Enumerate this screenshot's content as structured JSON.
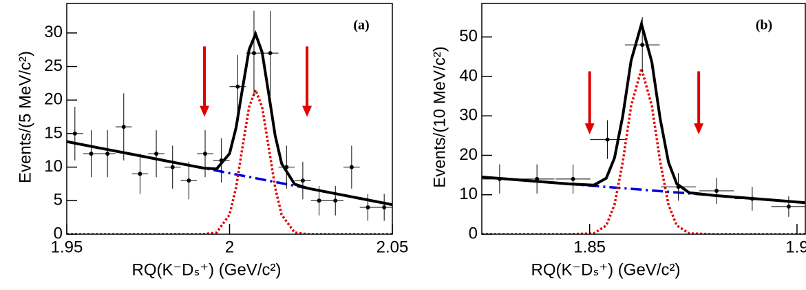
{
  "chart_data": [
    {
      "type": "scatter",
      "label": "(a)",
      "x_label": "RQ(K⁻Dₛ⁺) (GeV/c²)",
      "y_label": "Events/(5 MeV/c²)",
      "xlim": [
        1.95,
        2.05
      ],
      "ylim": [
        0,
        34.4
      ],
      "xticks": [
        1.95,
        2,
        2.05
      ],
      "yticks": [
        0,
        5,
        10,
        15,
        20,
        25,
        30
      ],
      "points": {
        "x": [
          1.9525,
          1.9575,
          1.9625,
          1.9675,
          1.9725,
          1.9775,
          1.9825,
          1.9875,
          1.9925,
          1.9975,
          2.0025,
          2.0075,
          2.0125,
          2.0175,
          2.0225,
          2.0275,
          2.0325,
          2.0375,
          2.0425,
          2.0475
        ],
        "xerrors": [
          0.0025,
          0.0025,
          0.0025,
          0.0025,
          0.0025,
          0.0025,
          0.0025,
          0.0025,
          0.0025,
          0.0025,
          0.0025,
          0.0025,
          0.0025,
          0.0025,
          0.0025,
          0.0025,
          0.0025,
          0.0025,
          0.0025,
          0.0025
        ],
        "values": [
          15,
          12,
          12,
          16,
          9,
          12,
          10,
          8,
          12,
          11,
          22,
          27,
          27,
          10,
          8,
          5,
          5,
          10,
          4,
          4
        ],
        "errors": [
          4,
          3.5,
          3.5,
          5,
          3,
          3.5,
          3.2,
          2.8,
          3.5,
          3.3,
          4.7,
          6.3,
          6.3,
          3.2,
          2.8,
          2.2,
          2.2,
          3.2,
          2,
          2
        ],
        "color": "#000000"
      },
      "curves": [
        {
          "color": "#0000dd",
          "style": "dashdot",
          "x": [
            1.95,
            1.96,
            1.97,
            1.98,
            1.99,
            1.992,
            1.996,
            2.0,
            2.002,
            2.004,
            2.006,
            2.008,
            2.01,
            2.012,
            2.014,
            2.016,
            2.02,
            2.024,
            2.03,
            2.04,
            2.05
          ],
          "values": [
            13.8,
            12.86,
            11.92,
            10.98,
            10.04,
            9.85,
            9.48,
            9.1,
            8.91,
            8.72,
            8.54,
            8.35,
            8.16,
            7.97,
            7.78,
            7.6,
            7.22,
            6.84,
            6.28,
            5.34,
            4.4
          ]
        },
        {
          "color": "#e00000",
          "style": "dotted",
          "x": [
            1.95,
            1.96,
            1.97,
            1.98,
            1.99,
            1.992,
            1.996,
            2.0,
            2.002,
            2.004,
            2.006,
            2.008,
            2.01,
            2.012,
            2.014,
            2.016,
            2.02,
            2.024,
            2.03,
            2.04,
            2.05
          ],
          "values": [
            0,
            0,
            0,
            0,
            0,
            0.01,
            0.24,
            2.91,
            6.98,
            13.04,
            18.97,
            21.5,
            18.97,
            13.04,
            6.98,
            2.91,
            0.24,
            0.01,
            0,
            0,
            0
          ]
        },
        {
          "color": "#000000",
          "style": "solid",
          "x": [
            1.95,
            1.96,
            1.97,
            1.98,
            1.99,
            1.992,
            1.996,
            2.0,
            2.002,
            2.004,
            2.006,
            2.008,
            2.01,
            2.012,
            2.014,
            2.016,
            2.02,
            2.024,
            2.03,
            2.04,
            2.05
          ],
          "values": [
            13.8,
            12.86,
            11.92,
            10.98,
            10.04,
            9.86,
            9.72,
            12.01,
            15.89,
            21.76,
            27.51,
            29.85,
            27.13,
            21.01,
            14.76,
            10.51,
            7.46,
            6.85,
            6.28,
            5.34,
            4.4
          ]
        }
      ],
      "arrows": [
        {
          "x": 1.9923,
          "from": 28,
          "to": 17.5,
          "color": "#e00000"
        },
        {
          "x": 2.0238,
          "from": 28,
          "to": 17.5,
          "color": "#e00000"
        }
      ]
    },
    {
      "type": "scatter",
      "label": "(b)",
      "x_label": "RQ(K⁻Dₛ⁺) (GeV/c²)",
      "y_label": "Events/(10 MeV/c²)",
      "xlim": [
        1.824,
        1.902
      ],
      "ylim": [
        0,
        58.5
      ],
      "xticks": [
        1.85,
        1.9
      ],
      "yticks": [
        0,
        10,
        20,
        30,
        40,
        50
      ],
      "points": {
        "x": [
          1.8283,
          1.8373,
          1.846,
          1.8543,
          1.8627,
          1.8714,
          1.8806,
          1.8892,
          1.898
        ],
        "xerrors": [
          0.0042,
          0.0042,
          0.0042,
          0.0042,
          0.0042,
          0.0042,
          0.0042,
          0.0042,
          0.0042
        ],
        "values": [
          14,
          14,
          14,
          24,
          48,
          12,
          11,
          9,
          7
        ],
        "errors": [
          3.7,
          3.7,
          3.7,
          4.9,
          7,
          3.5,
          3.3,
          3,
          2.6
        ],
        "color": "#000000"
      },
      "curves": [
        {
          "color": "#0000dd",
          "style": "dashdot",
          "x": [
            1.824,
            1.835,
            1.845,
            1.851,
            1.854,
            1.856,
            1.858,
            1.86,
            1.8625,
            1.865,
            1.867,
            1.869,
            1.871,
            1.874,
            1.88,
            1.89,
            1.902
          ],
          "values": [
            14.5,
            13.58,
            12.75,
            12.25,
            12,
            11.83,
            11.67,
            11.5,
            11.29,
            11.08,
            10.92,
            10.75,
            10.58,
            10.33,
            9.83,
            9,
            8
          ]
        },
        {
          "color": "#e00000",
          "style": "dotted",
          "x": [
            1.824,
            1.835,
            1.845,
            1.851,
            1.854,
            1.856,
            1.858,
            1.86,
            1.8625,
            1.865,
            1.867,
            1.869,
            1.871,
            1.874,
            1.88,
            1.89,
            1.902
          ],
          "values": [
            0,
            0,
            0,
            0.19,
            2.2,
            7.5,
            18.4,
            32.5,
            42,
            32.5,
            18.4,
            7.5,
            2.2,
            0.19,
            0,
            0,
            0
          ]
        },
        {
          "color": "#000000",
          "style": "solid",
          "x": [
            1.824,
            1.835,
            1.845,
            1.851,
            1.854,
            1.856,
            1.858,
            1.86,
            1.8625,
            1.865,
            1.867,
            1.869,
            1.871,
            1.874,
            1.88,
            1.89,
            1.902
          ],
          "values": [
            14.5,
            13.58,
            12.75,
            12.44,
            14.2,
            19.33,
            30.07,
            44,
            53.29,
            43.58,
            29.32,
            18.25,
            12.78,
            10.52,
            9.83,
            9,
            8
          ]
        }
      ],
      "arrows": [
        {
          "x": 1.85,
          "from": 41.3,
          "to": 25.3,
          "color": "#e00000"
        },
        {
          "x": 1.8763,
          "from": 41.3,
          "to": 25.3,
          "color": "#e00000"
        }
      ]
    }
  ]
}
